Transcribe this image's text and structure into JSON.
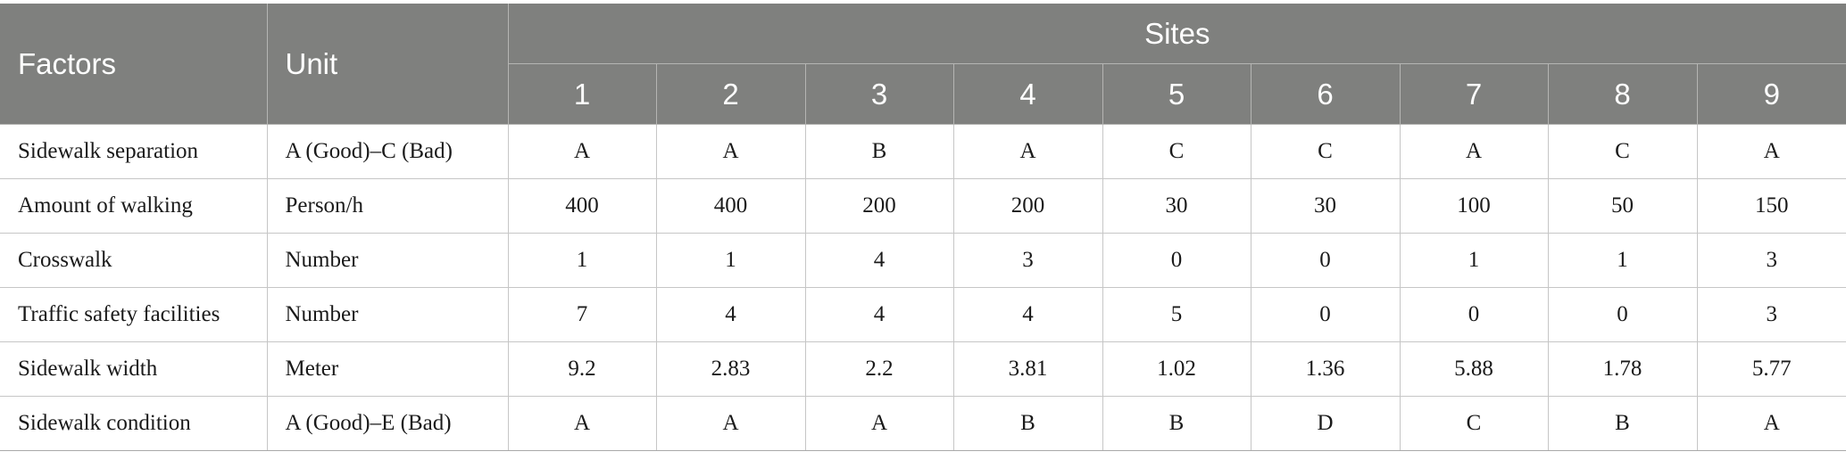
{
  "table": {
    "header": {
      "factors_label": "Factors",
      "unit_label": "Unit",
      "sites_label": "Sites",
      "site_numbers": [
        "1",
        "2",
        "3",
        "4",
        "5",
        "6",
        "7",
        "8",
        "9"
      ]
    },
    "rows": [
      {
        "factor": "Sidewalk separation",
        "unit": "A (Good)–C (Bad)",
        "values": [
          "A",
          "A",
          "B",
          "A",
          "C",
          "C",
          "A",
          "C",
          "A"
        ]
      },
      {
        "factor": "Amount of walking",
        "unit": "Person/h",
        "values": [
          "400",
          "400",
          "200",
          "200",
          "30",
          "30",
          "100",
          "50",
          "150"
        ]
      },
      {
        "factor": "Crosswalk",
        "unit": "Number",
        "values": [
          "1",
          "1",
          "4",
          "3",
          "0",
          "0",
          "1",
          "1",
          "3"
        ]
      },
      {
        "factor": "Traffic safety facilities",
        "unit": "Number",
        "values": [
          "7",
          "4",
          "4",
          "4",
          "5",
          "0",
          "0",
          "0",
          "3"
        ]
      },
      {
        "factor": "Sidewalk width",
        "unit": "Meter",
        "values": [
          "9.2",
          "2.83",
          "2.2",
          "3.81",
          "1.02",
          "1.36",
          "5.88",
          "1.78",
          "5.77"
        ]
      },
      {
        "factor": "Sidewalk condition",
        "unit": "A (Good)–E (Bad)",
        "values": [
          "A",
          "A",
          "A",
          "B",
          "B",
          "D",
          "C",
          "B",
          "A"
        ]
      }
    ]
  },
  "colors": {
    "header_background": "#7f807e",
    "header_text": "#ffffff",
    "body_text": "#1a1a1a",
    "grid_line": "#c6c6c6"
  }
}
